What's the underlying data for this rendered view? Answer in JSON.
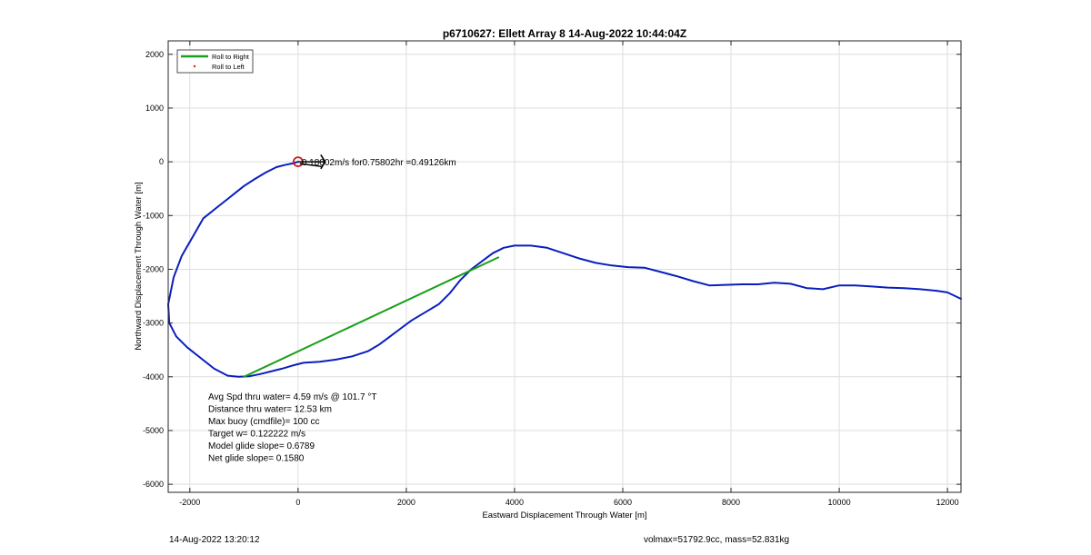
{
  "chart_data": {
    "type": "line",
    "title": "p6710627: Ellett Array 8 14-Aug-2022 10:44:04Z",
    "xlabel": "Eastward Displacement Through Water [m]",
    "ylabel": "Northward Displacement Through Water [m]",
    "xlim": [
      -2400,
      12250
    ],
    "ylim": [
      -6150,
      2250
    ],
    "xticks": [
      -2000,
      0,
      2000,
      4000,
      6000,
      8000,
      10000,
      12000
    ],
    "yticks": [
      2000,
      1000,
      0,
      -1000,
      -2000,
      -3000,
      -4000,
      -5000,
      -6000
    ],
    "grid": true,
    "legend_location": "top-left",
    "legend": [
      {
        "label": "Roll to Right",
        "color": "#1aa01a",
        "style": "line"
      },
      {
        "label": "Roll to Left",
        "color": "#d42020",
        "style": "dot"
      }
    ],
    "series": [
      {
        "color": "#0a1ebe",
        "x": [
          0,
          -100,
          -250,
          -400,
          -600,
          -800,
          -1000,
          -1250,
          -1500,
          -1750,
          -1950,
          -2150,
          -2300,
          -2400,
          -2380,
          -2250,
          -2050,
          -1800,
          -1550,
          -1300,
          -1100,
          -900,
          -700,
          -500,
          -300,
          -100,
          100,
          400,
          700,
          1000,
          1300,
          1500,
          1700,
          1900,
          2100,
          2350,
          2600,
          2800,
          3000,
          3200,
          3400,
          3600,
          3800,
          4000,
          4300,
          4600,
          4900,
          5200,
          5500,
          5800,
          6100,
          6400,
          6700,
          7000,
          7300,
          7600,
          7900,
          8200,
          8500,
          8800,
          9100,
          9400,
          9700,
          10000,
          10300,
          10600,
          10900,
          11200,
          11500,
          11800,
          12000,
          12250
        ],
        "y": [
          0,
          -30,
          -60,
          -100,
          -200,
          -320,
          -450,
          -650,
          -850,
          -1050,
          -1400,
          -1750,
          -2150,
          -2650,
          -3000,
          -3250,
          -3450,
          -3650,
          -3850,
          -3980,
          -4000,
          -3990,
          -3950,
          -3900,
          -3850,
          -3790,
          -3740,
          -3720,
          -3680,
          -3620,
          -3520,
          -3400,
          -3250,
          -3100,
          -2950,
          -2800,
          -2650,
          -2450,
          -2200,
          -2000,
          -1850,
          -1700,
          -1600,
          -1560,
          -1560,
          -1600,
          -1700,
          -1800,
          -1880,
          -1930,
          -1960,
          -1970,
          -2050,
          -2130,
          -2220,
          -2300,
          -2290,
          -2280,
          -2280,
          -2250,
          -2270,
          -2350,
          -2370,
          -2300,
          -2300,
          -2320,
          -2340,
          -2350,
          -2370,
          -2400,
          -2430,
          -2550
        ]
      },
      {
        "color": "#1aa01a",
        "x": [
          -1000,
          3700
        ],
        "y": [
          -4000,
          -1780
        ]
      }
    ],
    "annotations": [
      "0.18002m/s for0.75802hr =0.49126km",
      "Avg Spd thru water=  4.59 m/s @ 101.7 °T",
      "Distance thru water= 12.53 km",
      "Max buoy (cmdfile)= 100 cc",
      "Target w= 0.122222 m/s",
      "Model glide slope= 0.6789",
      "Net glide slope= 0.1580"
    ]
  },
  "footer": {
    "timestamp": "14-Aug-2022 13:20:12",
    "mass_info": "volmax=51792.9cc, mass=52.831kg"
  }
}
